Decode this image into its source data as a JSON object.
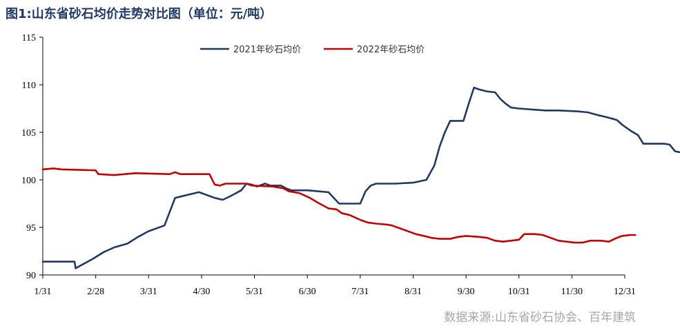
{
  "title": "图1:山东省砂石均价走势对比图（单位：元/吨）",
  "source": "数据来源:山东省砂石协会、百年建筑",
  "chart_data": {
    "type": "line",
    "ylim": [
      90,
      115
    ],
    "y_ticks": [
      "90",
      "95",
      "100",
      "105",
      "110",
      "115"
    ],
    "x_ticks": [
      "1/31",
      "2/28",
      "3/31",
      "4/30",
      "5/31",
      "6/30",
      "7/31",
      "8/31",
      "9/30",
      "10/31",
      "11/30",
      "12/31"
    ],
    "colors": {
      "series_2021": "#1f3864",
      "series_2022": "#c00000"
    },
    "series": [
      {
        "name": "2021年砂石均价",
        "points": [
          [
            0,
            91.4
          ],
          [
            0.6,
            91.4
          ],
          [
            0.62,
            90.7
          ],
          [
            0.95,
            91.7
          ],
          [
            1.15,
            92.4
          ],
          [
            1.35,
            92.9
          ],
          [
            1.6,
            93.3
          ],
          [
            1.8,
            94.0
          ],
          [
            2.0,
            94.6
          ],
          [
            2.3,
            95.2
          ],
          [
            2.5,
            98.1
          ],
          [
            2.95,
            98.7
          ],
          [
            3.25,
            98.1
          ],
          [
            3.4,
            97.9
          ],
          [
            3.55,
            98.3
          ],
          [
            3.75,
            98.9
          ],
          [
            3.85,
            99.6
          ],
          [
            3.95,
            99.5
          ],
          [
            4.05,
            99.3
          ],
          [
            4.2,
            99.6
          ],
          [
            4.3,
            99.4
          ],
          [
            4.5,
            99.4
          ],
          [
            4.6,
            99.1
          ],
          [
            4.7,
            98.9
          ],
          [
            5.0,
            98.9
          ],
          [
            5.2,
            98.8
          ],
          [
            5.4,
            98.7
          ],
          [
            5.6,
            97.5
          ],
          [
            6.0,
            97.5
          ],
          [
            6.1,
            98.8
          ],
          [
            6.2,
            99.4
          ],
          [
            6.3,
            99.6
          ],
          [
            6.65,
            99.6
          ],
          [
            7.0,
            99.7
          ],
          [
            7.25,
            100.0
          ],
          [
            7.4,
            101.5
          ],
          [
            7.5,
            103.5
          ],
          [
            7.6,
            105.0
          ],
          [
            7.7,
            106.2
          ],
          [
            7.95,
            106.2
          ],
          [
            8.05,
            108.0
          ],
          [
            8.15,
            109.7
          ],
          [
            8.25,
            109.5
          ],
          [
            8.4,
            109.3
          ],
          [
            8.55,
            109.2
          ],
          [
            8.65,
            108.5
          ],
          [
            8.75,
            108.0
          ],
          [
            8.85,
            107.6
          ],
          [
            9.0,
            107.5
          ],
          [
            9.25,
            107.4
          ],
          [
            9.5,
            107.3
          ],
          [
            9.75,
            107.3
          ],
          [
            10.1,
            107.2
          ],
          [
            10.3,
            107.1
          ],
          [
            10.5,
            106.8
          ],
          [
            10.65,
            106.6
          ],
          [
            10.85,
            106.3
          ],
          [
            10.95,
            105.8
          ],
          [
            11.1,
            105.2
          ],
          [
            11.25,
            104.7
          ],
          [
            11.35,
            103.8
          ],
          [
            11.75,
            103.8
          ],
          [
            11.85,
            103.7
          ],
          [
            11.95,
            103.0
          ],
          [
            12.05,
            102.9
          ]
        ]
      },
      {
        "name": "2022年砂石均价",
        "points": [
          [
            0,
            101.1
          ],
          [
            0.2,
            101.2
          ],
          [
            0.35,
            101.1
          ],
          [
            1.0,
            101.0
          ],
          [
            1.05,
            100.6
          ],
          [
            1.35,
            100.5
          ],
          [
            1.55,
            100.6
          ],
          [
            1.75,
            100.7
          ],
          [
            2.4,
            100.6
          ],
          [
            2.45,
            100.7
          ],
          [
            2.5,
            100.8
          ],
          [
            2.6,
            100.6
          ],
          [
            3.15,
            100.6
          ],
          [
            3.25,
            99.5
          ],
          [
            3.35,
            99.4
          ],
          [
            3.45,
            99.6
          ],
          [
            3.85,
            99.6
          ],
          [
            3.95,
            99.4
          ],
          [
            4.35,
            99.3
          ],
          [
            4.55,
            99.1
          ],
          [
            4.65,
            98.8
          ],
          [
            4.85,
            98.6
          ],
          [
            5.05,
            98.1
          ],
          [
            5.2,
            97.6
          ],
          [
            5.4,
            97.0
          ],
          [
            5.55,
            96.9
          ],
          [
            5.65,
            96.5
          ],
          [
            5.8,
            96.3
          ],
          [
            6.0,
            95.8
          ],
          [
            6.15,
            95.5
          ],
          [
            6.3,
            95.4
          ],
          [
            6.5,
            95.3
          ],
          [
            6.6,
            95.2
          ],
          [
            6.75,
            94.9
          ],
          [
            6.9,
            94.6
          ],
          [
            7.05,
            94.3
          ],
          [
            7.2,
            94.1
          ],
          [
            7.35,
            93.9
          ],
          [
            7.5,
            93.8
          ],
          [
            7.7,
            93.8
          ],
          [
            7.85,
            94.0
          ],
          [
            8.0,
            94.1
          ],
          [
            8.25,
            94.0
          ],
          [
            8.4,
            93.9
          ],
          [
            8.55,
            93.6
          ],
          [
            8.7,
            93.5
          ],
          [
            8.85,
            93.6
          ],
          [
            9.0,
            93.7
          ],
          [
            9.1,
            94.3
          ],
          [
            9.3,
            94.3
          ],
          [
            9.45,
            94.2
          ],
          [
            9.6,
            93.9
          ],
          [
            9.75,
            93.6
          ],
          [
            9.9,
            93.5
          ],
          [
            10.05,
            93.4
          ],
          [
            10.2,
            93.4
          ],
          [
            10.35,
            93.6
          ],
          [
            10.55,
            93.6
          ],
          [
            10.7,
            93.5
          ],
          [
            10.85,
            93.9
          ],
          [
            10.95,
            94.1
          ],
          [
            11.1,
            94.2
          ],
          [
            11.2,
            94.2
          ]
        ]
      }
    ]
  }
}
